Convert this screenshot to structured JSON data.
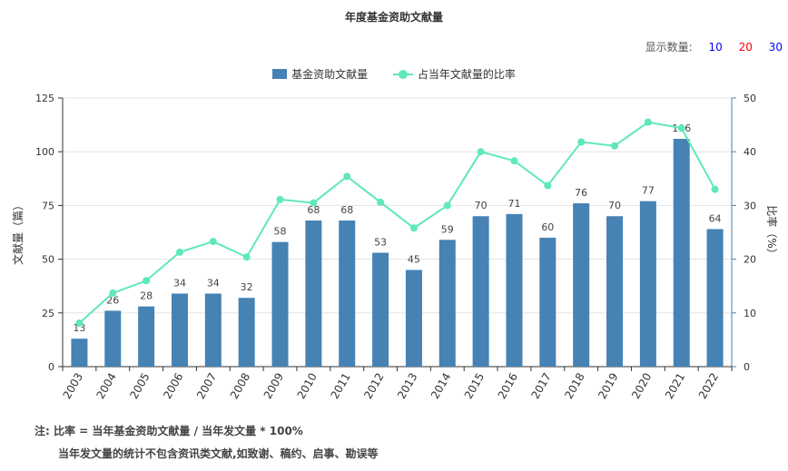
{
  "chart_data": {
    "type": "bar",
    "title": "年度基金资助文献量",
    "categories": [
      "2003",
      "2004",
      "2005",
      "2006",
      "2007",
      "2008",
      "2009",
      "2010",
      "2011",
      "2012",
      "2013",
      "2014",
      "2015",
      "2016",
      "2017",
      "2018",
      "2019",
      "2020",
      "2021",
      "2022"
    ],
    "series": [
      {
        "name": "基金资助文献量",
        "type": "bar",
        "axis": "left",
        "color": "#4682b4",
        "values": [
          13,
          26,
          28,
          34,
          34,
          32,
          58,
          68,
          68,
          53,
          45,
          59,
          70,
          71,
          60,
          76,
          70,
          77,
          106,
          64
        ]
      },
      {
        "name": "占当年文献量的比率",
        "type": "line",
        "axis": "right",
        "color": "#5fe8b8",
        "values": [
          8.1,
          13.7,
          16.0,
          21.3,
          23.3,
          20.4,
          31.1,
          30.5,
          35.4,
          30.6,
          25.8,
          30.0,
          40.0,
          38.3,
          33.7,
          41.8,
          41.1,
          45.5,
          44.4,
          33.0
        ]
      }
    ],
    "ylabel": "文献量（篇）",
    "y2label": "比率（%）",
    "ylim": [
      0,
      125
    ],
    "yticks": [
      0,
      25,
      50,
      75,
      100,
      125
    ],
    "y2lim": [
      0,
      50
    ],
    "y2ticks": [
      0,
      10,
      20,
      30,
      40,
      50
    ],
    "grid": true,
    "legend_position": "top-center"
  },
  "controls": {
    "count_label": "显示数量:",
    "options": [
      "10",
      "20",
      "30"
    ],
    "option_colors": [
      "#0000ff",
      "#ff0000",
      "#0000ff"
    ]
  },
  "note": {
    "line1": "注:  比率 = 当年基金资助文献量 / 当年发文量 * 100%",
    "line2": "当年发文量的统计不包含资讯类文献,如致谢、稿约、启事、勘误等"
  }
}
